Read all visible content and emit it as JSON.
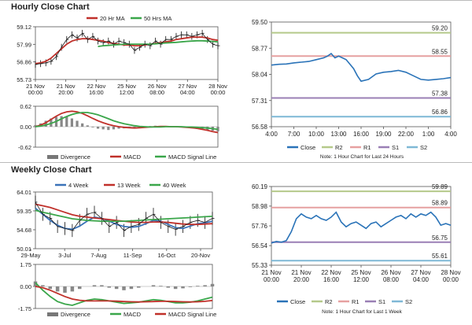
{
  "hourly": {
    "title": "Hourly Close Chart",
    "left_price": {
      "legend": [
        {
          "label": "20 Hr MA",
          "color": "#c0302a"
        },
        {
          "label": "50 Hrs MA",
          "color": "#3aa64a"
        }
      ],
      "y_ticks": [
        "59.12",
        "57.99",
        "56.86",
        "55.73"
      ],
      "y_tick_values": [
        59.12,
        57.99,
        56.86,
        55.73
      ],
      "x_ticks": [
        [
          "21 Nov",
          "00:00"
        ],
        [
          "21 Nov",
          "20:00"
        ],
        [
          "22 Nov",
          "16:00"
        ],
        [
          "25 Nov",
          "12:00"
        ],
        [
          "26 Nov",
          "08:00"
        ],
        [
          "27 Nov",
          "04:00"
        ],
        [
          "28 Nov",
          "00:00"
        ]
      ]
    },
    "left_macd": {
      "y_ticks": [
        "0.62",
        "0.00",
        "-0.62"
      ],
      "y_tick_values": [
        0.62,
        0.0,
        -0.62
      ],
      "legend": [
        {
          "label": "Divergence",
          "color": "#777777"
        },
        {
          "label": "MACD",
          "color": "#c0302a"
        },
        {
          "label": "MACD Signal Line",
          "color": "#3aa64a"
        }
      ]
    },
    "right": {
      "y_ticks": [
        "59.50",
        "58.77",
        "58.04",
        "57.31",
        "56.58"
      ],
      "y_tick_values": [
        59.5,
        58.77,
        58.04,
        57.31,
        56.58
      ],
      "x_ticks": [
        "4:00",
        "7:00",
        "10:00",
        "13:00",
        "16:00",
        "19:00",
        "22:00",
        "1:00",
        "4:00"
      ],
      "levels": [
        {
          "label": "59.20",
          "value": 59.2,
          "color": "#b5c98a"
        },
        {
          "label": "58.55",
          "value": 58.55,
          "color": "#e6a0a0"
        },
        {
          "label": "57.38",
          "value": 57.38,
          "color": "#9a7fb5"
        },
        {
          "label": "56.86",
          "value": 56.86,
          "color": "#7fb8d6"
        }
      ],
      "legend": [
        {
          "label": "Close",
          "color": "#2a73b8"
        },
        {
          "label": "R2",
          "color": "#b5c98a"
        },
        {
          "label": "R1",
          "color": "#e6a0a0"
        },
        {
          "label": "S1",
          "color": "#9a7fb5"
        },
        {
          "label": "S2",
          "color": "#7fb8d6"
        }
      ],
      "note": "Note: 1 Hour Chart for Last 24 Hours"
    }
  },
  "weekly": {
    "title": "Weekly Close Chart",
    "left_price": {
      "legend": [
        {
          "label": "4 Week",
          "color": "#3a72b8"
        },
        {
          "label": "13 Week",
          "color": "#c0302a"
        },
        {
          "label": "40 Week",
          "color": "#3aa64a"
        }
      ],
      "y_ticks": [
        "64.01",
        "59.35",
        "54.68",
        "50.01"
      ],
      "y_tick_values": [
        64.01,
        59.35,
        54.68,
        50.01
      ],
      "x_ticks": [
        "29-May",
        "3-Jul",
        "7-Aug",
        "11-Sep",
        "16-Oct",
        "20-Nov"
      ]
    },
    "left_macd": {
      "y_ticks": [
        "1.75",
        "0.00",
        "-1.75"
      ],
      "y_tick_values": [
        1.75,
        0.0,
        -1.75
      ],
      "legend": [
        {
          "label": "Divergence",
          "color": "#777777"
        },
        {
          "label": "MACD",
          "color": "#3aa64a"
        },
        {
          "label": "MACD Signal Line",
          "color": "#c0302a"
        }
      ]
    },
    "right": {
      "y_ticks": [
        "60.19",
        "58.98",
        "57.76",
        "56.54",
        "55.33"
      ],
      "y_tick_values": [
        60.19,
        58.98,
        57.76,
        56.54,
        55.33
      ],
      "x_ticks": [
        [
          "21 Nov",
          "00:00"
        ],
        [
          "21 Nov",
          "20:00"
        ],
        [
          "22 Nov",
          "16:00"
        ],
        [
          "25 Nov",
          "12:00"
        ],
        [
          "26 Nov",
          "08:00"
        ],
        [
          "27 Nov",
          "04:00"
        ],
        [
          "28 Nov",
          "00:00"
        ]
      ],
      "levels": [
        {
          "label": "59.89",
          "value": 59.89,
          "color": "#b5c98a"
        },
        {
          "label": "58.89",
          "value": 58.89,
          "color": "#e6a0a0"
        },
        {
          "label": "56.75",
          "value": 56.75,
          "color": "#9a7fb5"
        },
        {
          "label": "55.61",
          "value": 55.61,
          "color": "#7fb8d6"
        }
      ],
      "legend": [
        {
          "label": "Close",
          "color": "#2a73b8"
        },
        {
          "label": "R2",
          "color": "#b5c98a"
        },
        {
          "label": "R1",
          "color": "#e6a0a0"
        },
        {
          "label": "S1",
          "color": "#9a7fb5"
        },
        {
          "label": "S2",
          "color": "#7fb8d6"
        }
      ],
      "note": "Note: 1 Hour Chart for Last 1 Week"
    }
  },
  "chart_data": [
    {
      "type": "line",
      "id": "hourly-price",
      "title": "Hourly Close Chart",
      "ylim": [
        55.73,
        59.12
      ],
      "series": [
        {
          "name": "Close",
          "color": "#111111",
          "y": [
            56.7,
            56.75,
            56.8,
            56.9,
            57.2,
            57.8,
            58.3,
            58.6,
            58.4,
            58.7,
            58.3,
            58.5,
            58.2,
            58.1,
            58.2,
            58.0,
            58.2,
            58.1,
            58.0,
            57.6,
            57.8,
            58.0,
            57.9,
            58.2,
            58.0,
            58.3,
            58.3,
            58.5,
            58.6,
            58.6,
            58.5,
            58.6,
            58.7,
            58.3,
            58.0,
            57.9
          ]
        },
        {
          "name": "20 Hr MA",
          "color": "#c0302a",
          "y": [
            56.75,
            56.8,
            56.9,
            57.1,
            57.4,
            57.7,
            58.0,
            58.2,
            58.3,
            58.35,
            58.35,
            58.3,
            58.25,
            58.2,
            58.1,
            58.05,
            58.0,
            57.95,
            57.95,
            57.9,
            57.9,
            57.95,
            58.0,
            58.05,
            58.1,
            58.15,
            58.2,
            58.3,
            58.35,
            58.4,
            58.45,
            58.45,
            58.45,
            58.4,
            58.3,
            58.25
          ]
        },
        {
          "name": "50 Hrs MA",
          "color": "#3aa64a",
          "y": [
            null,
            null,
            null,
            null,
            null,
            null,
            null,
            null,
            null,
            null,
            null,
            null,
            57.85,
            57.9,
            57.92,
            57.95,
            57.97,
            58.0,
            58.0,
            58.0,
            58.0,
            58.0,
            58.0,
            58.02,
            58.05,
            58.08,
            58.1,
            58.12,
            58.15,
            58.18,
            58.2,
            58.22,
            58.22,
            58.2,
            58.18,
            58.15
          ]
        }
      ]
    },
    {
      "type": "bar",
      "id": "hourly-macd",
      "ylim": [
        -0.62,
        0.62
      ],
      "divergence": [
        0.05,
        0.1,
        0.18,
        0.25,
        0.3,
        0.32,
        0.3,
        0.25,
        0.18,
        0.1,
        0.04,
        -0.02,
        -0.06,
        -0.08,
        -0.1,
        -0.08,
        -0.06,
        -0.05,
        -0.04,
        -0.05,
        -0.03,
        0.0,
        0.02,
        0.03,
        0.02,
        0.01,
        0.0,
        -0.01,
        -0.02,
        -0.03,
        -0.05,
        -0.07,
        -0.08,
        -0.1,
        -0.12,
        -0.14
      ],
      "series": [
        {
          "name": "MACD",
          "color": "#c0302a",
          "y": [
            0.0,
            0.05,
            0.12,
            0.22,
            0.32,
            0.4,
            0.45,
            0.47,
            0.45,
            0.4,
            0.33,
            0.25,
            0.18,
            0.12,
            0.07,
            0.03,
            0.0,
            -0.02,
            -0.03,
            -0.04,
            -0.03,
            -0.02,
            -0.01,
            0.0,
            0.01,
            0.01,
            0.0,
            0.0,
            -0.01,
            -0.02,
            -0.03,
            -0.05,
            -0.08,
            -0.11,
            -0.15,
            -0.18
          ]
        },
        {
          "name": "MACD Signal Line",
          "color": "#3aa64a",
          "y": [
            0.0,
            0.02,
            0.05,
            0.1,
            0.16,
            0.24,
            0.31,
            0.37,
            0.41,
            0.43,
            0.43,
            0.4,
            0.36,
            0.3,
            0.24,
            0.18,
            0.13,
            0.09,
            0.06,
            0.03,
            0.01,
            0.0,
            -0.01,
            -0.01,
            -0.01,
            0.0,
            0.0,
            0.0,
            0.0,
            -0.01,
            -0.01,
            -0.02,
            -0.03,
            -0.04,
            -0.06,
            -0.08
          ]
        }
      ]
    },
    {
      "type": "line",
      "id": "hourly-close-24h",
      "ylim": [
        56.58,
        59.5
      ],
      "xlim": [
        0,
        24
      ],
      "series": [
        {
          "name": "Close",
          "color": "#2a73b8",
          "x": [
            0,
            1,
            2,
            3,
            4,
            5,
            6,
            7,
            7.5,
            8,
            8.5,
            9,
            10,
            11,
            11.5,
            12,
            13,
            14,
            15,
            16,
            17,
            18,
            19,
            20,
            21,
            22,
            23,
            24
          ],
          "y": [
            58.3,
            58.32,
            58.33,
            58.36,
            58.38,
            58.4,
            58.45,
            58.5,
            58.55,
            58.62,
            58.5,
            58.55,
            58.45,
            58.2,
            58.0,
            57.85,
            57.9,
            58.05,
            58.1,
            58.12,
            58.15,
            58.1,
            58.0,
            57.9,
            57.88,
            57.9,
            57.92,
            57.95
          ]
        }
      ],
      "levels": {
        "R2": 59.2,
        "R1": 58.55,
        "S1": 57.38,
        "S2": 56.86
      }
    },
    {
      "type": "line",
      "id": "weekly-price",
      "title": "Weekly Close Chart",
      "ylim": [
        50.01,
        64.01
      ],
      "series": [
        {
          "name": "Close",
          "color": "#111111",
          "y": [
            61.5,
            58.5,
            57.5,
            55.5,
            55.0,
            54.5,
            57.0,
            58.5,
            59.0,
            57.5,
            55.5,
            56.5,
            54.5,
            55.5,
            56.0,
            57.5,
            58.5,
            56.5,
            55.5,
            54.8,
            55.5,
            56.5,
            57.0,
            56.5,
            57.5
          ]
        },
        {
          "name": "4 Week",
          "color": "#3a72b8",
          "y": [
            60.0,
            58.5,
            57.0,
            55.8,
            55.0,
            54.8,
            55.6,
            56.8,
            57.8,
            57.5,
            56.8,
            56.0,
            55.5,
            55.3,
            55.5,
            56.2,
            57.0,
            56.8,
            56.0,
            55.2,
            55.0,
            55.6,
            56.2,
            56.4,
            56.8
          ]
        },
        {
          "name": "13 Week",
          "color": "#c0302a",
          "y": [
            61.0,
            60.6,
            60.2,
            59.6,
            59.0,
            58.4,
            58.0,
            57.8,
            57.6,
            57.4,
            57.2,
            57.0,
            56.8,
            56.6,
            56.5,
            56.5,
            56.6,
            56.6,
            56.5,
            56.3,
            56.1,
            56.0,
            56.0,
            56.1,
            56.2
          ]
        },
        {
          "name": "40 Week",
          "color": "#3aa64a",
          "y": [
            59.5,
            59.0,
            58.6,
            58.2,
            57.8,
            57.4,
            57.2,
            57.0,
            56.9,
            56.8,
            56.8,
            56.8,
            56.8,
            56.9,
            57.0,
            57.1,
            57.2,
            57.3,
            57.4,
            57.5,
            57.6,
            57.7,
            57.8,
            57.9,
            58.0
          ]
        }
      ]
    },
    {
      "type": "bar",
      "id": "weekly-macd",
      "ylim": [
        -1.75,
        1.75
      ],
      "divergence": [
        0.4,
        0.1,
        -0.2,
        -0.4,
        -0.5,
        -0.4,
        -0.2,
        0.0,
        0.1,
        0.1,
        -0.1,
        -0.2,
        -0.3,
        -0.2,
        -0.1,
        0.0,
        0.1,
        0.05,
        -0.1,
        -0.2,
        -0.15,
        -0.05,
        0.05,
        0.1,
        0.2
      ],
      "series": [
        {
          "name": "MACD",
          "color": "#3aa64a",
          "y": [
            0.3,
            -0.3,
            -0.8,
            -1.2,
            -1.4,
            -1.5,
            -1.3,
            -1.1,
            -1.0,
            -1.05,
            -1.15,
            -1.25,
            -1.35,
            -1.3,
            -1.25,
            -1.15,
            -1.05,
            -1.1,
            -1.2,
            -1.3,
            -1.3,
            -1.25,
            -1.15,
            -1.0,
            -0.85
          ]
        },
        {
          "name": "MACD Signal Line",
          "color": "#c0302a",
          "y": [
            0.0,
            -0.1,
            -0.3,
            -0.55,
            -0.8,
            -1.0,
            -1.1,
            -1.15,
            -1.15,
            -1.15,
            -1.15,
            -1.17,
            -1.2,
            -1.22,
            -1.23,
            -1.22,
            -1.2,
            -1.18,
            -1.18,
            -1.2,
            -1.22,
            -1.23,
            -1.22,
            -1.18,
            -1.12
          ]
        }
      ]
    },
    {
      "type": "line",
      "id": "weekly-close-1w",
      "ylim": [
        55.33,
        60.19
      ],
      "xlim": [
        0,
        36
      ],
      "series": [
        {
          "name": "Close",
          "color": "#2a73b8",
          "x": [
            0,
            1,
            2,
            3,
            4,
            5,
            6,
            7,
            8,
            9,
            10,
            11,
            12,
            13,
            14,
            15,
            16,
            17,
            18,
            19,
            20,
            21,
            22,
            23,
            24,
            25,
            26,
            27,
            28,
            29,
            30,
            31,
            32,
            33,
            34,
            35,
            36
          ],
          "y": [
            56.7,
            56.8,
            56.75,
            56.85,
            57.4,
            58.2,
            58.5,
            58.3,
            58.2,
            58.4,
            58.2,
            58.1,
            58.3,
            58.6,
            58.0,
            57.7,
            57.9,
            58.0,
            57.8,
            57.6,
            57.9,
            58.0,
            57.7,
            57.9,
            58.1,
            58.3,
            58.4,
            58.2,
            58.5,
            58.3,
            58.5,
            58.4,
            58.6,
            58.3,
            57.8,
            57.9,
            57.8
          ]
        }
      ],
      "levels": {
        "R2": 59.89,
        "R1": 58.89,
        "S1": 56.75,
        "S2": 55.61
      }
    }
  ]
}
